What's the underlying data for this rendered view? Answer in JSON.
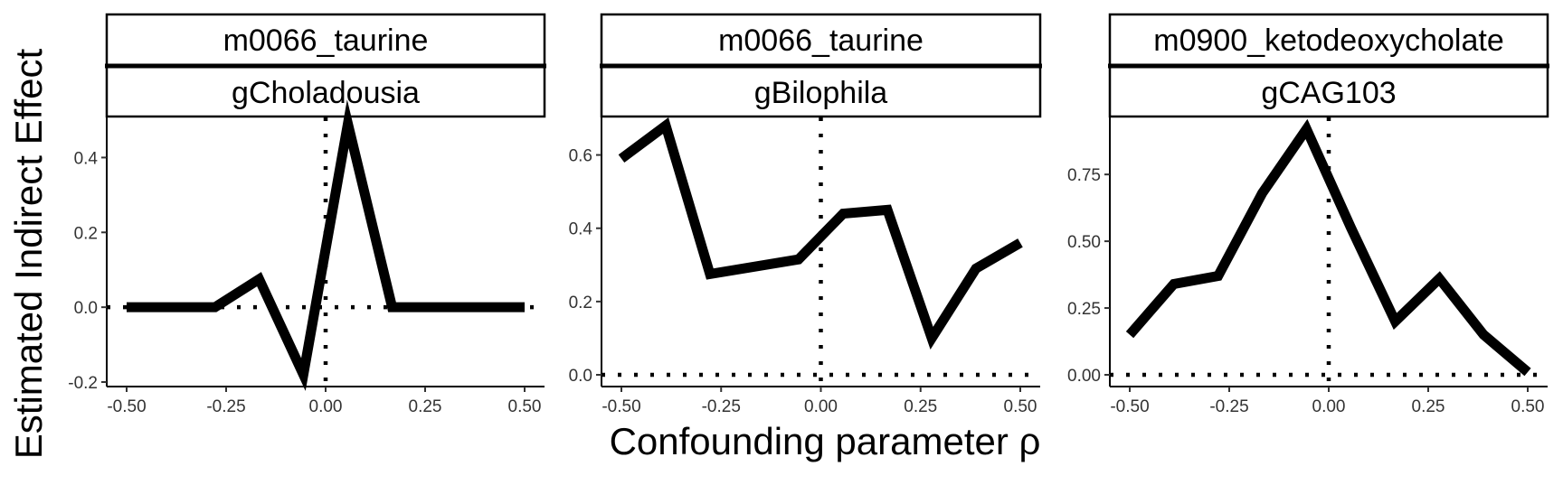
{
  "chart_data": {
    "type": "line",
    "xlabel": "Confounding parameter ρ",
    "ylabel": "Estimated Indirect Effect",
    "grid": false,
    "legend": "none",
    "panels": [
      {
        "metabolite": "m0066_taurine",
        "taxon": "gCholadousia",
        "xlim": [
          -0.5,
          0.5
        ],
        "ylim": [
          -0.2,
          0.5
        ],
        "x_ticks": [
          "-0.50",
          "-0.25",
          "0.00",
          "0.25",
          "0.50"
        ],
        "y_ticks": [
          "-0.2",
          "0.0",
          "0.2",
          "0.4"
        ],
        "y_tick_values": [
          -0.2,
          0.0,
          0.2,
          0.4
        ],
        "x": [
          -0.5,
          -0.278,
          -0.167,
          -0.056,
          0.056,
          0.167,
          0.5
        ],
        "y": [
          0.0,
          0.0,
          0.075,
          -0.18,
          0.49,
          0.0,
          0.0
        ]
      },
      {
        "metabolite": "m0066_taurine",
        "taxon": "gBilophila",
        "xlim": [
          -0.5,
          0.5
        ],
        "ylim": [
          0.0,
          0.7
        ],
        "x_ticks": [
          "-0.50",
          "-0.25",
          "0.00",
          "0.25",
          "0.50"
        ],
        "y_ticks": [
          "0.0",
          "0.2",
          "0.4",
          "0.6"
        ],
        "y_tick_values": [
          0.0,
          0.2,
          0.4,
          0.6
        ],
        "x": [
          -0.5,
          -0.389,
          -0.278,
          -0.056,
          0.056,
          0.167,
          0.278,
          0.389,
          0.5
        ],
        "y": [
          0.59,
          0.68,
          0.275,
          0.315,
          0.44,
          0.45,
          0.1,
          0.29,
          0.36
        ]
      },
      {
        "metabolite": "m0900_ketodeoxycholate",
        "taxon": "gCAG103",
        "xlim": [
          -0.5,
          0.5
        ],
        "ylim": [
          0.0,
          0.95
        ],
        "x_ticks": [
          "-0.50",
          "-0.25",
          "0.00",
          "0.25",
          "0.50"
        ],
        "y_ticks": [
          "0.00",
          "0.25",
          "0.50",
          "0.75"
        ],
        "y_tick_values": [
          0.0,
          0.25,
          0.5,
          0.75
        ],
        "x": [
          -0.5,
          -0.389,
          -0.278,
          -0.167,
          -0.056,
          0.056,
          0.167,
          0.278,
          0.389,
          0.5
        ],
        "y": [
          0.15,
          0.34,
          0.37,
          0.68,
          0.92,
          0.55,
          0.2,
          0.36,
          0.15,
          0.01
        ]
      }
    ]
  }
}
